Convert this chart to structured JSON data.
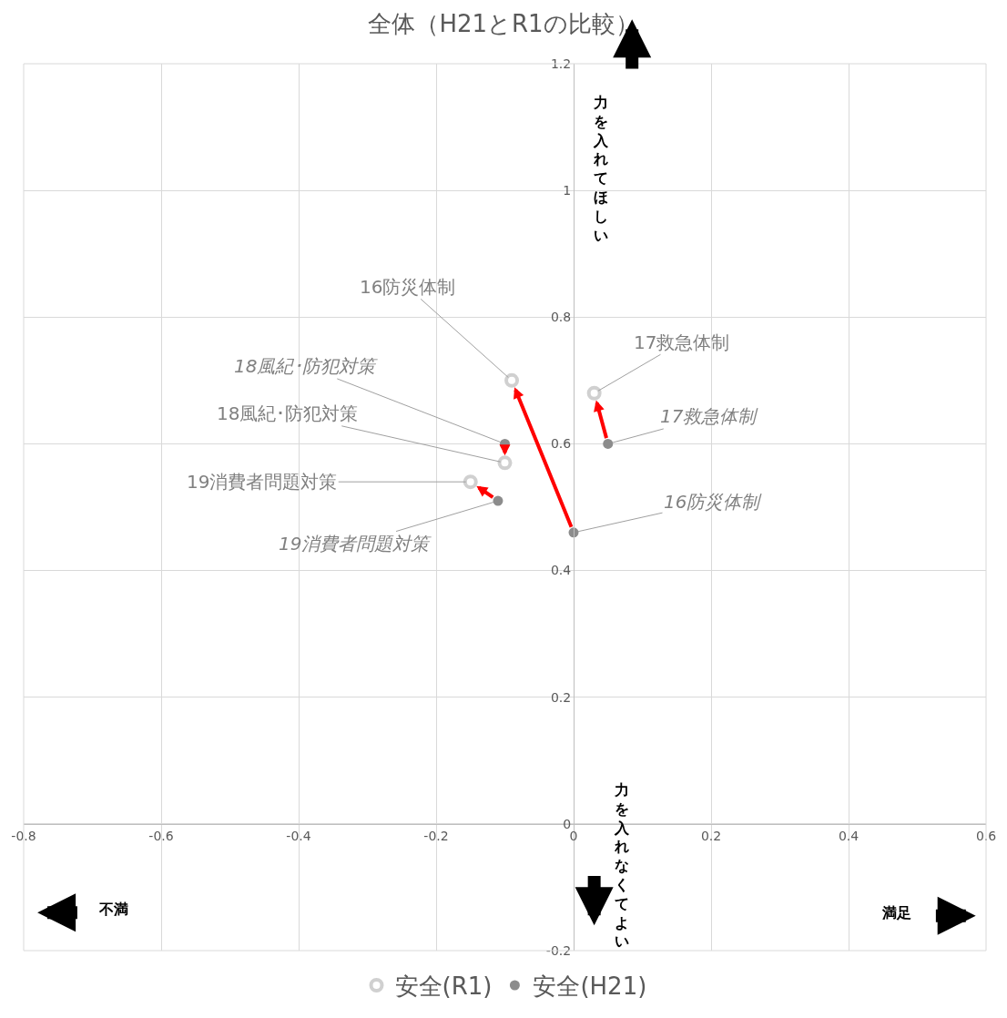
{
  "chart_data": {
    "type": "scatter",
    "title": "全体（H21とR1の比較）",
    "series": [
      {
        "name": "安全(R1)",
        "color": "#d0d0d0",
        "x": [
          -0.09,
          0.03,
          -0.1,
          -0.15
        ],
        "values": [
          0.7,
          0.68,
          0.57,
          0.54
        ]
      },
      {
        "name": "安全(H21)",
        "color": "#8c8c8c",
        "x": [
          0.0,
          0.05,
          -0.1,
          -0.11
        ],
        "values": [
          0.46,
          0.6,
          0.6,
          0.51
        ]
      }
    ],
    "xlim": [
      -0.8,
      0.6
    ],
    "xticks": [
      -0.8,
      -0.6,
      -0.4,
      -0.2,
      0,
      0.2,
      0.4,
      0.6
    ],
    "ylim": [
      -0.2,
      1.2
    ],
    "yticks": [
      -0.2,
      0,
      0.2,
      0.4,
      0.6,
      0.8,
      1,
      1.2
    ],
    "grid": true,
    "legend": "bottom",
    "marker": "circle",
    "annotations": [
      {
        "text": "16防災体制",
        "x": -0.09,
        "y": 0.7
      },
      {
        "text": "17救急体制",
        "x": 0.03,
        "y": 0.68
      },
      {
        "text": "18風紀･防犯対策",
        "x": -0.1,
        "y": 0.57
      },
      {
        "text": "19消費者問題対策",
        "x": -0.15,
        "y": 0.54
      },
      {
        "text": "16防災体制",
        "x": 0.0,
        "y": 0.46
      },
      {
        "text": "17救急体制",
        "x": 0.05,
        "y": 0.6
      },
      {
        "text": "18風紀･防犯対策",
        "x": -0.1,
        "y": 0.6
      },
      {
        "text": "19消費者問題対策",
        "x": -0.11,
        "y": 0.51
      },
      "力を入れてほしい",
      "力を入れなくてよい",
      "不満",
      "満足"
    ]
  }
}
